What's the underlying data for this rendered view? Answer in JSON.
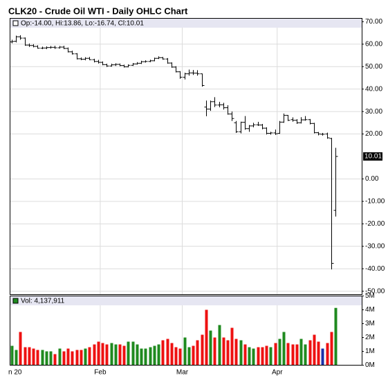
{
  "chart_data": {
    "type": "ohlc",
    "title": "CLK20 - Crude Oil WTI - Daily OHLC Chart",
    "info": "Op:-14.00, Hi:13.86, Lo:-16.74, Cl:10.01",
    "volume_info": "Vol: 4,137,911",
    "categories": [
      "n 20",
      null,
      null,
      null,
      null,
      null,
      null,
      null,
      null,
      null,
      null,
      null,
      null,
      null,
      null,
      null,
      null,
      null,
      null,
      null,
      null,
      "Feb",
      null,
      null,
      null,
      null,
      null,
      null,
      null,
      null,
      null,
      null,
      null,
      null,
      null,
      null,
      null,
      null,
      null,
      null,
      "Mar",
      null,
      null,
      null,
      null,
      null,
      null,
      null,
      null,
      null,
      null,
      null,
      null,
      null,
      null,
      null,
      null,
      null,
      null,
      null,
      null,
      null,
      "Apr",
      null,
      null,
      null,
      null,
      null,
      null,
      null,
      null,
      null,
      null,
      null,
      null,
      null
    ],
    "open": [
      61.0,
      61.3,
      63.3,
      62.7,
      59.6,
      59.4,
      59.0,
      58.2,
      58.3,
      58.5,
      58.6,
      58.4,
      58.7,
      58.1,
      56.6,
      55.7,
      53.5,
      53.3,
      53.7,
      53.1,
      52.3,
      51.9,
      50.9,
      50.3,
      50.8,
      51.0,
      50.5,
      49.9,
      50.6,
      51.2,
      51.5,
      52.2,
      52.3,
      52.6,
      53.7,
      54.0,
      53.4,
      51.6,
      49.8,
      47.7,
      45.3,
      46.8,
      47.2,
      47.1,
      46.8,
      32.0,
      31.1,
      34.4,
      32.9,
      33.0,
      31.7,
      28.9,
      25.0,
      21.0,
      25.2,
      22.4,
      23.6,
      24.1,
      24.0,
      22.6,
      20.3,
      20.5,
      20.3,
      25.3,
      28.3,
      26.4,
      26.1,
      25.0,
      26.3,
      26.4,
      24.7,
      20.6,
      19.9,
      20.0,
      18.0,
      -14.0
    ],
    "high": [
      62.0,
      63.8,
      64.0,
      63.0,
      60.3,
      60.0,
      59.5,
      58.9,
      59.0,
      59.2,
      59.3,
      59.2,
      59.3,
      58.5,
      57.1,
      56.0,
      54.1,
      54.2,
      54.3,
      53.5,
      53.0,
      52.3,
      51.3,
      51.3,
      51.5,
      51.4,
      50.9,
      51.0,
      51.6,
      52.0,
      52.6,
      52.8,
      53.1,
      54.0,
      54.6,
      54.3,
      53.8,
      51.9,
      50.2,
      48.0,
      47.3,
      48.7,
      48.5,
      48.4,
      46.9,
      34.9,
      34.9,
      36.4,
      34.3,
      33.9,
      32.8,
      30.0,
      25.8,
      25.5,
      28.0,
      24.0,
      25.0,
      25.4,
      24.5,
      23.0,
      21.0,
      22.0,
      25.8,
      29.1,
      28.5,
      27.4,
      26.6,
      27.5,
      28.0,
      26.7,
      25.0,
      20.9,
      20.5,
      20.6,
      18.3,
      13.86
    ],
    "low": [
      60.4,
      60.8,
      62.0,
      59.3,
      58.8,
      58.6,
      58.0,
      57.8,
      57.8,
      58.0,
      57.9,
      58.0,
      57.8,
      56.3,
      55.4,
      53.2,
      52.9,
      52.8,
      52.9,
      51.9,
      51.4,
      50.6,
      49.9,
      50.0,
      50.3,
      50.2,
      49.6,
      49.7,
      50.3,
      50.9,
      51.2,
      51.8,
      52.0,
      52.4,
      53.4,
      53.1,
      51.3,
      49.5,
      47.4,
      44.6,
      44.3,
      46.0,
      46.3,
      46.0,
      41.1,
      27.9,
      30.3,
      32.0,
      31.9,
      30.9,
      28.6,
      25.8,
      20.5,
      20.3,
      21.9,
      21.0,
      23.0,
      23.6,
      22.1,
      19.8,
      19.7,
      19.6,
      20.1,
      25.0,
      25.8,
      25.5,
      24.5,
      24.7,
      25.9,
      24.3,
      20.3,
      19.4,
      19.3,
      17.9,
      -40.3,
      -16.74
    ],
    "close": [
      61.2,
      63.3,
      62.7,
      59.6,
      59.4,
      59.0,
      58.2,
      58.3,
      58.5,
      58.6,
      58.4,
      58.7,
      58.1,
      56.6,
      55.7,
      53.5,
      53.3,
      53.7,
      53.1,
      52.3,
      51.9,
      50.9,
      50.3,
      50.8,
      51.0,
      50.5,
      49.9,
      50.6,
      51.2,
      51.5,
      52.2,
      52.3,
      52.6,
      53.7,
      54.0,
      53.4,
      51.6,
      49.8,
      47.7,
      45.3,
      46.8,
      47.2,
      47.1,
      46.8,
      41.6,
      31.1,
      34.4,
      32.9,
      33.0,
      31.7,
      28.9,
      26.9,
      21.0,
      25.2,
      22.4,
      23.6,
      24.1,
      24.0,
      22.6,
      20.3,
      20.5,
      20.1,
      25.3,
      28.3,
      26.1,
      26.1,
      25.0,
      26.3,
      26.4,
      24.7,
      20.6,
      20.0,
      19.9,
      18.3,
      -37.6,
      10.01
    ],
    "color": "#000000",
    "volume": [
      1400000,
      1100000,
      2400000,
      1300000,
      1300000,
      1200000,
      1100000,
      1100000,
      1000000,
      1000000,
      800000,
      1200000,
      1000000,
      1200000,
      1000000,
      1100000,
      1100000,
      1200000,
      1300000,
      1500000,
      1700000,
      1600000,
      1500000,
      1600000,
      1500000,
      1500000,
      1400000,
      1700000,
      1700000,
      1500000,
      1200000,
      1200000,
      1300000,
      1400000,
      1500000,
      1800000,
      1900000,
      1600000,
      1300000,
      1200000,
      2000000,
      1300000,
      1400000,
      1800000,
      2200000,
      4000000,
      2500000,
      2000000,
      2900000,
      2000000,
      1800000,
      2700000,
      1900000,
      1800000,
      1500000,
      1300000,
      1200000,
      1300000,
      1300000,
      1400000,
      1300000,
      1600000,
      1900000,
      2400000,
      1600000,
      1500000,
      1500000,
      1900000,
      1500000,
      1800000,
      2200000,
      1700000,
      1200000,
      1600000,
      2400000,
      4137911
    ],
    "volume_colors": {
      "up": "#1f8a1f",
      "down": "#ee1111",
      "unchanged": "#1a2fa8"
    },
    "ylim": [
      -51.5,
      71.5
    ],
    "yticks": [
      {
        "value": 70,
        "label": "70.00"
      },
      {
        "value": 60,
        "label": "60.00"
      },
      {
        "value": 50,
        "label": "50.00"
      },
      {
        "value": 40,
        "label": "40.00"
      },
      {
        "value": 30,
        "label": "30.00"
      },
      {
        "value": 20,
        "label": "20.00"
      },
      {
        "value": 0,
        "label": "0.00"
      },
      {
        "value": -10,
        "label": "-10.00"
      },
      {
        "value": -20,
        "label": "-20.00"
      },
      {
        "value": -30,
        "label": "-30.00"
      },
      {
        "value": -40,
        "label": "-40.00"
      },
      {
        "value": -50,
        "label": "-50.00"
      }
    ],
    "volume_ylim": [
      0,
      5000000
    ],
    "volume_yticks": [
      {
        "value": 5000000,
        "label": "5M"
      },
      {
        "value": 4000000,
        "label": "4M"
      },
      {
        "value": 3000000,
        "label": "3M"
      },
      {
        "value": 2000000,
        "label": "2M"
      },
      {
        "value": 1000000,
        "label": "1M"
      },
      {
        "value": 0,
        "label": "0M"
      }
    ],
    "grid": true
  }
}
